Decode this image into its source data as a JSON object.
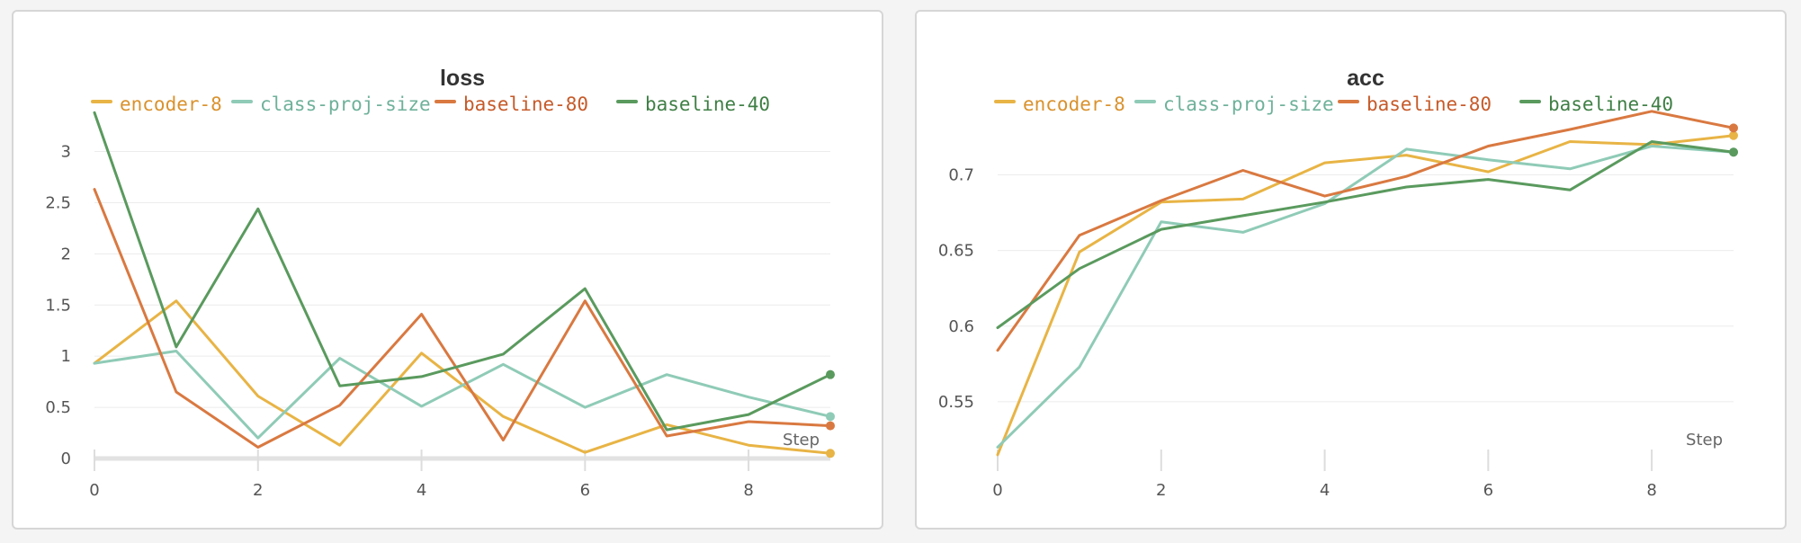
{
  "colors": {
    "encoder-8": "#e8b445",
    "class-proj-size": "#8fcbb7",
    "baseline-80": "#d97941",
    "baseline-40": "#5a9a5e",
    "grid": "#ececec",
    "legend_text": [
      "#d9922e",
      "#6fb19b",
      "#c65a29",
      "#3f7f45"
    ]
  },
  "chart_data": [
    {
      "type": "line",
      "title": "loss",
      "xlabel": "Step",
      "ylabel": "",
      "x": [
        0,
        1,
        2,
        3,
        4,
        5,
        6,
        7,
        8,
        9
      ],
      "xticks": [
        0,
        2,
        4,
        6,
        8
      ],
      "xtick_labels": [
        "0",
        "2",
        "4",
        "6",
        "8"
      ],
      "yticks": [
        0,
        0.5,
        1,
        1.5,
        2,
        2.5,
        3
      ],
      "ytick_labels": [
        "0",
        "0.5",
        "1",
        "1.5",
        "2",
        "2.5",
        "3"
      ],
      "xlim": [
        0,
        9
      ],
      "ylim": [
        0,
        3.4
      ],
      "grid": true,
      "legend_position": "top",
      "series": [
        {
          "name": "encoder-8",
          "values": [
            0.93,
            1.54,
            0.61,
            0.13,
            1.03,
            0.41,
            0.06,
            0.33,
            0.13,
            0.05
          ]
        },
        {
          "name": "class-proj-size",
          "values": [
            0.93,
            1.05,
            0.2,
            0.98,
            0.51,
            0.92,
            0.5,
            0.82,
            0.6,
            0.41
          ]
        },
        {
          "name": "baseline-80",
          "values": [
            2.63,
            0.65,
            0.11,
            0.52,
            1.41,
            0.18,
            1.54,
            0.22,
            0.36,
            0.32
          ]
        },
        {
          "name": "baseline-40",
          "values": [
            3.38,
            1.09,
            2.44,
            0.71,
            0.8,
            1.02,
            1.66,
            0.28,
            0.43,
            0.82
          ]
        }
      ]
    },
    {
      "type": "line",
      "title": "acc",
      "xlabel": "Step",
      "ylabel": "",
      "x": [
        0,
        1,
        2,
        3,
        4,
        5,
        6,
        7,
        8,
        9
      ],
      "xticks": [
        0,
        2,
        4,
        6,
        8
      ],
      "xtick_labels": [
        "0",
        "2",
        "4",
        "6",
        "8"
      ],
      "yticks": [
        0.55,
        0.6,
        0.65,
        0.7
      ],
      "ytick_labels": [
        "0.55",
        "0.6",
        "0.65",
        "0.7"
      ],
      "xlim": [
        0,
        9
      ],
      "ylim": [
        0.5125,
        0.7425
      ],
      "grid": true,
      "legend_position": "top",
      "series": [
        {
          "name": "encoder-8",
          "values": [
            0.515,
            0.649,
            0.682,
            0.684,
            0.708,
            0.713,
            0.702,
            0.722,
            0.72,
            0.726
          ]
        },
        {
          "name": "class-proj-size",
          "values": [
            0.52,
            0.573,
            0.669,
            0.662,
            0.681,
            0.717,
            0.71,
            0.704,
            0.719,
            0.715
          ]
        },
        {
          "name": "baseline-80",
          "values": [
            0.584,
            0.66,
            0.683,
            0.703,
            0.686,
            0.699,
            0.719,
            0.73,
            0.742,
            0.731
          ]
        },
        {
          "name": "baseline-40",
          "values": [
            0.599,
            0.638,
            0.664,
            0.673,
            0.682,
            0.692,
            0.697,
            0.69,
            0.722,
            0.715
          ]
        }
      ]
    }
  ]
}
